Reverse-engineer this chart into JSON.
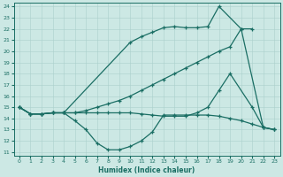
{
  "xlabel": "Humidex (Indice chaleur)",
  "xlim": [
    -0.5,
    23.5
  ],
  "ylim": [
    10.7,
    24.3
  ],
  "xticks": [
    0,
    1,
    2,
    3,
    4,
    5,
    6,
    7,
    8,
    9,
    10,
    11,
    12,
    13,
    14,
    15,
    16,
    17,
    18,
    19,
    20,
    21,
    22,
    23
  ],
  "yticks": [
    11,
    12,
    13,
    14,
    15,
    16,
    17,
    18,
    19,
    20,
    21,
    22,
    23,
    24
  ],
  "bg_color": "#cce8e4",
  "line_color": "#1a6e64",
  "grid_color": "#aad0cc",
  "line1_x": [
    0,
    1,
    2,
    3,
    4,
    10,
    11,
    12,
    13,
    14,
    15,
    16,
    17,
    18,
    20,
    21
  ],
  "line1_y": [
    15,
    14.4,
    14.4,
    14.5,
    14.5,
    20.8,
    21.3,
    21.7,
    22.1,
    22.2,
    22.1,
    22.1,
    22.2,
    24.0,
    22.0,
    22.0
  ],
  "line2_x": [
    0,
    1,
    2,
    3,
    4,
    5,
    6,
    7,
    8,
    9,
    10,
    11,
    12,
    13,
    14,
    15,
    16,
    17,
    18,
    19,
    20,
    22,
    23
  ],
  "line2_y": [
    15,
    14.4,
    14.4,
    14.5,
    14.5,
    14.5,
    14.7,
    15.0,
    15.3,
    15.6,
    16.0,
    16.5,
    17.0,
    17.5,
    18.0,
    18.5,
    19.0,
    19.5,
    20.0,
    20.4,
    22.0,
    13.2,
    13.0
  ],
  "line3_x": [
    0,
    1,
    2,
    3,
    4,
    5,
    6,
    7,
    8,
    9,
    10,
    11,
    12,
    13,
    14,
    15,
    16,
    17,
    18,
    19,
    21,
    22,
    23
  ],
  "line3_y": [
    15,
    14.4,
    14.4,
    14.5,
    14.5,
    14.5,
    14.5,
    14.5,
    14.5,
    14.5,
    14.5,
    14.4,
    14.3,
    14.2,
    14.2,
    14.2,
    14.5,
    15.0,
    16.5,
    18.0,
    15.0,
    13.2,
    13.0
  ],
  "line4_x": [
    0,
    1,
    2,
    3,
    4,
    5,
    6,
    7,
    8,
    9,
    10,
    11,
    12,
    13,
    14,
    15,
    16,
    17,
    18,
    19,
    20,
    21,
    22,
    23
  ],
  "line4_y": [
    15,
    14.4,
    14.4,
    14.5,
    14.5,
    13.8,
    13.0,
    11.8,
    11.2,
    11.2,
    11.5,
    12.0,
    12.8,
    14.3,
    14.3,
    14.3,
    14.3,
    14.3,
    14.2,
    14.0,
    13.8,
    13.5,
    13.2,
    13.0
  ]
}
